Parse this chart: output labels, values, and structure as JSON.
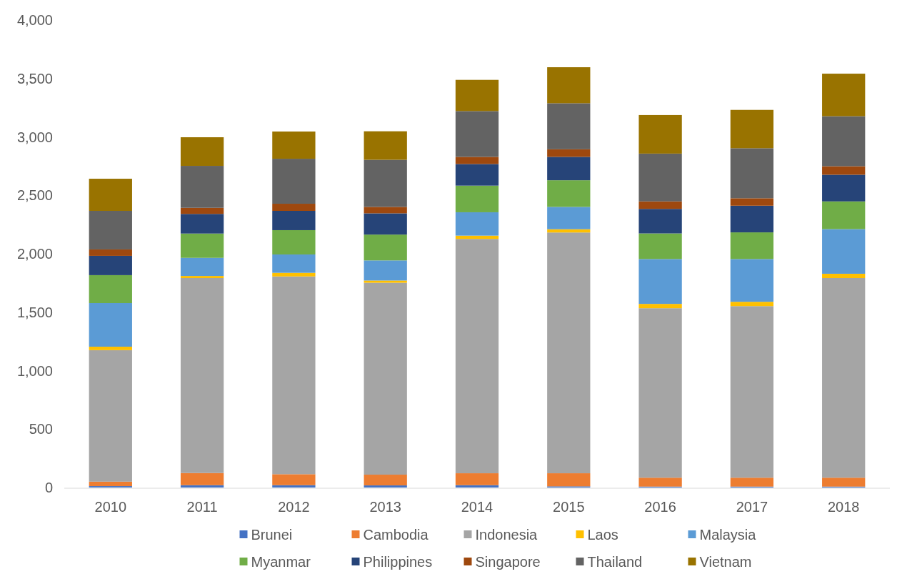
{
  "chart_data": {
    "type": "bar",
    "stacked": true,
    "legend": "bottom",
    "categories": [
      "2010",
      "2011",
      "2012",
      "2013",
      "2014",
      "2015",
      "2016",
      "2017",
      "2018"
    ],
    "ylim": [
      0,
      4000
    ],
    "yticks": [
      0,
      500,
      {
        "value": 1000,
        "label": "1,000"
      },
      {
        "value": 1500,
        "label": "1,500"
      },
      {
        "value": 2000,
        "label": "2,000"
      },
      {
        "value": 2500,
        "label": "2,500"
      },
      {
        "value": 3000,
        "label": "3,000"
      },
      {
        "value": 3500,
        "label": "3,500"
      },
      {
        "value": 4000,
        "label": "4,000"
      }
    ],
    "series": [
      {
        "name": "Brunei",
        "color": "#4472c4",
        "values": [
          12,
          20,
          20,
          18,
          20,
          10,
          8,
          8,
          8
        ]
      },
      {
        "name": "Cambodia",
        "color": "#ed7d31",
        "values": [
          38,
          104,
          94,
          92,
          102,
          112,
          76,
          76,
          76
        ]
      },
      {
        "name": "Indonesia",
        "color": "#a5a5a5",
        "values": [
          1125,
          1668,
          1692,
          1642,
          2005,
          2060,
          1450,
          1468,
          1708
        ]
      },
      {
        "name": "Laos",
        "color": "#ffc000",
        "values": [
          30,
          18,
          31,
          19,
          28,
          28,
          37,
          37,
          37
        ]
      },
      {
        "name": "Malaysia",
        "color": "#5b9bd5",
        "values": [
          373,
          155,
          157,
          172,
          200,
          191,
          384,
          366,
          382
        ]
      },
      {
        "name": "Myanmar",
        "color": "#70ad47",
        "values": [
          239,
          208,
          208,
          221,
          228,
          228,
          219,
          228,
          237
        ]
      },
      {
        "name": "Philippines",
        "color": "#264478",
        "values": [
          165,
          168,
          165,
          182,
          185,
          200,
          210,
          228,
          228
        ]
      },
      {
        "name": "Singapore",
        "color": "#9e480e",
        "values": [
          55,
          52,
          61,
          55,
          61,
          65,
          64,
          64,
          73
        ]
      },
      {
        "name": "Thailand",
        "color": "#636363",
        "values": [
          330,
          359,
          385,
          403,
          392,
          394,
          409,
          428,
          428
        ]
      },
      {
        "name": "Vietnam",
        "color": "#997300",
        "values": [
          275,
          245,
          233,
          244,
          267,
          308,
          330,
          328,
          364
        ]
      }
    ]
  }
}
